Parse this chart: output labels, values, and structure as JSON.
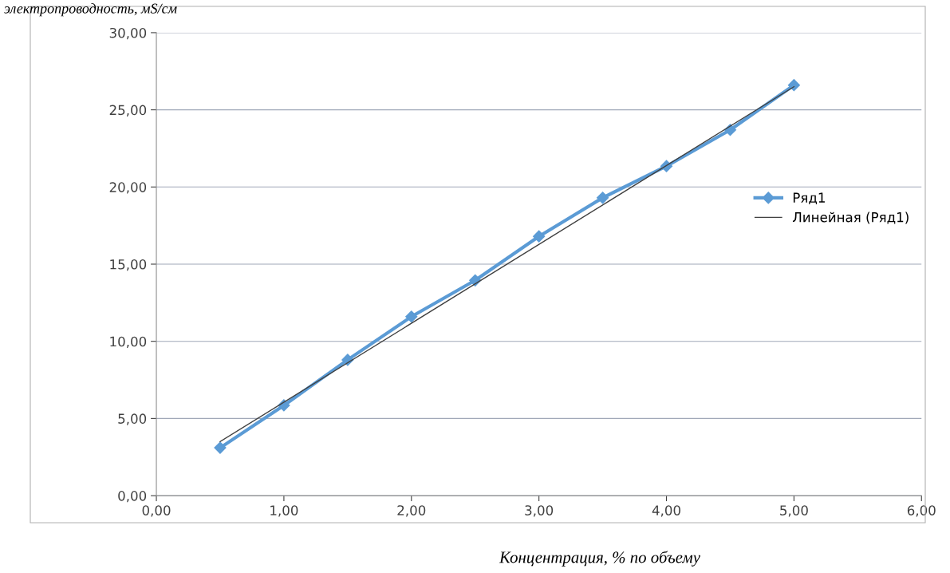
{
  "chart_data": {
    "type": "line",
    "ylabel": "электропроводность, мS/см",
    "xlabel": "Концентрация, % по объему",
    "x": [
      0.5,
      1.0,
      1.5,
      2.0,
      2.5,
      3.0,
      3.5,
      4.0,
      4.5,
      5.0
    ],
    "series": [
      {
        "name": "Ряд1",
        "color": "#5b9bd5",
        "marker": "diamond",
        "values": [
          3.1,
          5.85,
          8.8,
          11.6,
          13.95,
          16.8,
          19.3,
          21.35,
          23.7,
          26.6
        ]
      },
      {
        "name": "Линейная (Ряд1)",
        "color": "#404040",
        "marker": "none",
        "x": [
          0.5,
          5.0
        ],
        "values": [
          3.5,
          26.5
        ]
      }
    ],
    "xlim": [
      0,
      6
    ],
    "xticks": [
      {
        "value": 0,
        "label": "0,00"
      },
      {
        "value": 1,
        "label": "1,00"
      },
      {
        "value": 2,
        "label": "2,00"
      },
      {
        "value": 3,
        "label": "3,00"
      },
      {
        "value": 4,
        "label": "4,00"
      },
      {
        "value": 5,
        "label": "5,00"
      },
      {
        "value": 6,
        "label": "6,00"
      }
    ],
    "ylim": [
      0,
      30
    ],
    "yticks": [
      {
        "value": 0,
        "label": "0,00"
      },
      {
        "value": 5,
        "label": "5,00"
      },
      {
        "value": 10,
        "label": "10,00"
      },
      {
        "value": 15,
        "label": "15,00"
      },
      {
        "value": 20,
        "label": "20,00"
      },
      {
        "value": 25,
        "label": "25,00"
      },
      {
        "value": 30,
        "label": "30,00"
      }
    ],
    "grid": "y",
    "legend": "right",
    "line_style": "solid"
  }
}
